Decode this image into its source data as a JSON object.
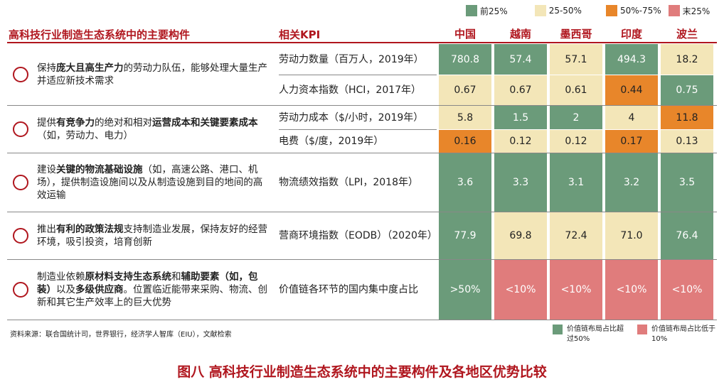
{
  "legend": [
    {
      "label": "前25%",
      "color": "#6b9b7a"
    },
    {
      "label": "25-50%",
      "color": "#f3e6b8"
    },
    {
      "label": "50%-75%",
      "color": "#e8862a"
    },
    {
      "label": "末25%",
      "color": "#e07c7c"
    }
  ],
  "header": {
    "left_title": "高科技行业制造生态系统中的主要构件",
    "kpi_title": "相关KPI",
    "countries": [
      "中国",
      "越南",
      "墨西哥",
      "印度",
      "波兰"
    ]
  },
  "groups": [
    {
      "segments": [
        {
          "t": "保持"
        },
        {
          "t": "庞大且高生产力",
          "b": true
        },
        {
          "t": "的劳动力队伍，能够处理大量生产并适应新技术需求"
        }
      ]
    },
    {
      "segments": [
        {
          "t": "提供"
        },
        {
          "t": "有竞争力",
          "b": true
        },
        {
          "t": "的绝对和相对"
        },
        {
          "t": "运营成本和关键要素成本",
          "b": true
        },
        {
          "t": "（如，劳动力、电力）"
        }
      ]
    },
    {
      "segments": [
        {
          "t": "建设"
        },
        {
          "t": "关键的物流基础设施",
          "b": true
        },
        {
          "t": "（如，高速公路、港口、机场），提供制造设施间以及从制造设施到目的地间的高效运输"
        }
      ]
    },
    {
      "segments": [
        {
          "t": "推出"
        },
        {
          "t": "有利的政策法规",
          "b": true
        },
        {
          "t": "支持制造业发展，保持友好的经营环境，吸引投资，培育创新"
        }
      ]
    },
    {
      "segments": [
        {
          "t": "制造业依赖"
        },
        {
          "t": "原材料支持生态系统",
          "b": true
        },
        {
          "t": "和"
        },
        {
          "t": "辅助要素（如，包装）",
          "b": true
        },
        {
          "t": "以及"
        },
        {
          "t": "多级供应商",
          "b": true
        },
        {
          "t": "。位置临近能带来采购、物流、创新和其它生产效率上的巨大优势"
        }
      ]
    }
  ],
  "chart_data": {
    "type": "table",
    "title": "图八 高科技行业制造生态系统中的主要构件及各地区优势比较",
    "columns": [
      "中国",
      "越南",
      "墨西哥",
      "印度",
      "波兰"
    ],
    "rows": [
      {
        "kpi": "劳动力数量（百万人，2019年）",
        "values": [
          "780.8",
          "57.4",
          "57.1",
          "494.3",
          "18.2"
        ],
        "tiers": [
          "前25%",
          "前25%",
          "25-50%",
          "前25%",
          "25-50%"
        ]
      },
      {
        "kpi": "人力资本指数（HCI，2017年）",
        "values": [
          "0.67",
          "0.67",
          "0.61",
          "0.44",
          "0.75"
        ],
        "tiers": [
          "25-50%",
          "25-50%",
          "25-50%",
          "50%-75%",
          "前25%"
        ]
      },
      {
        "kpi": "劳动力成本（$/小时，2019年）",
        "values": [
          "5.8",
          "1.5",
          "2",
          "4",
          "11.8"
        ],
        "tiers": [
          "25-50%",
          "前25%",
          "前25%",
          "25-50%",
          "50%-75%"
        ]
      },
      {
        "kpi": "电费（$/度，2019年）",
        "values": [
          "0.16",
          "0.12",
          "0.12",
          "0.17",
          "0.13"
        ],
        "tiers": [
          "50%-75%",
          "25-50%",
          "25-50%",
          "50%-75%",
          "25-50%"
        ]
      },
      {
        "kpi": "物流绩效指数（LPI，2018年）",
        "values": [
          "3.6",
          "3.3",
          "3.1",
          "3.2",
          "3.5"
        ],
        "tiers": [
          "前25%",
          "前25%",
          "前25%",
          "前25%",
          "前25%"
        ]
      },
      {
        "kpi": "营商环境指数（EODB）（2020年）",
        "values": [
          "77.9",
          "69.8",
          "72.4",
          "71.0",
          "76.4"
        ],
        "tiers": [
          "前25%",
          "25-50%",
          "25-50%",
          "25-50%",
          "前25%"
        ]
      },
      {
        "kpi": "价值链各环节的国内集中度占比",
        "values": [
          ">50%",
          "<10%",
          "<10%",
          "<10%",
          "<10%"
        ],
        "tiers": [
          "前25%",
          "末25%",
          "末25%",
          "末25%",
          "末25%"
        ]
      }
    ]
  },
  "source": "资料来源：联合国统计司，世界银行，经济学人智库（EIU），文献检索",
  "notes": [
    {
      "label": "价值链布局占比超过50%",
      "color": "#6b9b7a"
    },
    {
      "label": "价值链布局占比低于10%",
      "color": "#e07c7c"
    }
  ]
}
